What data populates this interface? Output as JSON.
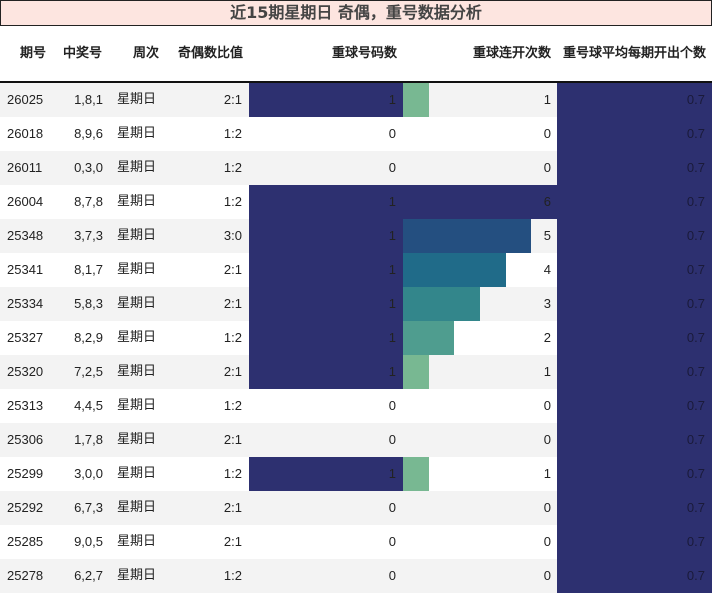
{
  "title": "近15期星期日 奇偶，重号数据分析",
  "headers": [
    "期号",
    "中奖号",
    "周次",
    "奇偶数比值",
    "重球号码数",
    "重球连开次数",
    "重号球平均每期开出个数"
  ],
  "colors": {
    "title_bg": "#fde5e0",
    "dark_bar": "#2d3070",
    "streak_1": "#78b892",
    "streak_2": "#4f9d8f",
    "streak_3": "#33868b",
    "streak_4": "#206b89",
    "streak_5": "#244f80",
    "streak_6": "#2d3070",
    "row_alt": "#f3f3f3"
  },
  "rows": [
    {
      "period": "26025",
      "numbers": "1,8,1",
      "weekday": "星期日",
      "odd_even": "2:1",
      "repeat_count": "1",
      "streak": "1",
      "avg": "0.7"
    },
    {
      "period": "26018",
      "numbers": "8,9,6",
      "weekday": "星期日",
      "odd_even": "1:2",
      "repeat_count": "0",
      "streak": "0",
      "avg": "0.7"
    },
    {
      "period": "26011",
      "numbers": "0,3,0",
      "weekday": "星期日",
      "odd_even": "1:2",
      "repeat_count": "0",
      "streak": "0",
      "avg": "0.7"
    },
    {
      "period": "26004",
      "numbers": "8,7,8",
      "weekday": "星期日",
      "odd_even": "1:2",
      "repeat_count": "1",
      "streak": "6",
      "avg": "0.7"
    },
    {
      "period": "25348",
      "numbers": "3,7,3",
      "weekday": "星期日",
      "odd_even": "3:0",
      "repeat_count": "1",
      "streak": "5",
      "avg": "0.7"
    },
    {
      "period": "25341",
      "numbers": "8,1,7",
      "weekday": "星期日",
      "odd_even": "2:1",
      "repeat_count": "1",
      "streak": "4",
      "avg": "0.7"
    },
    {
      "period": "25334",
      "numbers": "5,8,3",
      "weekday": "星期日",
      "odd_even": "2:1",
      "repeat_count": "1",
      "streak": "3",
      "avg": "0.7"
    },
    {
      "period": "25327",
      "numbers": "8,2,9",
      "weekday": "星期日",
      "odd_even": "1:2",
      "repeat_count": "1",
      "streak": "2",
      "avg": "0.7"
    },
    {
      "period": "25320",
      "numbers": "7,2,5",
      "weekday": "星期日",
      "odd_even": "2:1",
      "repeat_count": "1",
      "streak": "1",
      "avg": "0.7"
    },
    {
      "period": "25313",
      "numbers": "4,4,5",
      "weekday": "星期日",
      "odd_even": "1:2",
      "repeat_count": "0",
      "streak": "0",
      "avg": "0.7"
    },
    {
      "period": "25306",
      "numbers": "1,7,8",
      "weekday": "星期日",
      "odd_even": "2:1",
      "repeat_count": "0",
      "streak": "0",
      "avg": "0.7"
    },
    {
      "period": "25299",
      "numbers": "3,0,0",
      "weekday": "星期日",
      "odd_even": "1:2",
      "repeat_count": "1",
      "streak": "1",
      "avg": "0.7"
    },
    {
      "period": "25292",
      "numbers": "6,7,3",
      "weekday": "星期日",
      "odd_even": "2:1",
      "repeat_count": "0",
      "streak": "0",
      "avg": "0.7"
    },
    {
      "period": "25285",
      "numbers": "9,0,5",
      "weekday": "星期日",
      "odd_even": "2:1",
      "repeat_count": "0",
      "streak": "0",
      "avg": "0.7"
    },
    {
      "period": "25278",
      "numbers": "6,2,7",
      "weekday": "星期日",
      "odd_even": "1:2",
      "repeat_count": "0",
      "streak": "0",
      "avg": "0.7"
    }
  ]
}
